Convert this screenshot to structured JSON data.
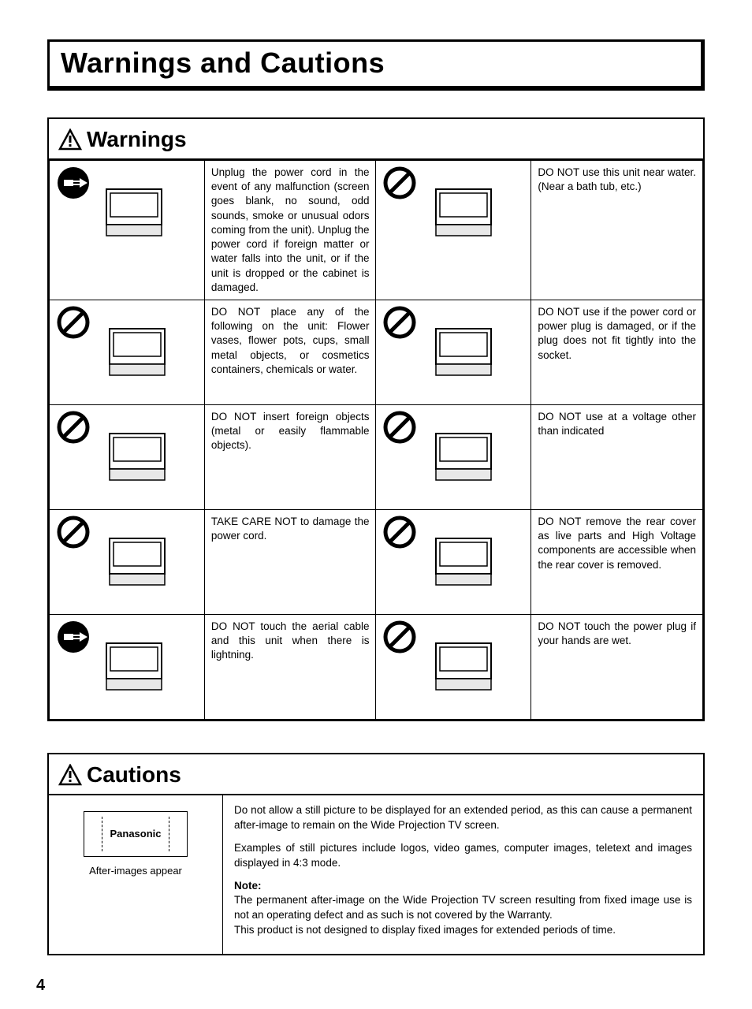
{
  "page_title": "Warnings and Cautions",
  "page_number": "4",
  "colors": {
    "text": "#000000",
    "background": "#ffffff",
    "border": "#000000"
  },
  "fonts": {
    "title_size_pt": 36,
    "section_head_size_pt": 28,
    "body_size_pt": 13.5,
    "family": "Arial"
  },
  "warnings": {
    "heading": "Warnings",
    "rows": [
      {
        "left_icon": "plug",
        "left_text": "Unplug the power cord in the event of any malfunction (screen goes blank, no sound, odd sounds, smoke or unusual odors coming from the unit). Unplug the power cord if foreign matter or water falls into the unit, or if the unit is dropped or the cabinet is damaged.",
        "right_icon": "prohibit",
        "right_text": "DO NOT use this unit near water. (Near a bath tub, etc.)"
      },
      {
        "left_icon": "prohibit",
        "left_text": "DO NOT place any of the following on the unit: Flower vases, flower pots, cups, small metal objects, or cosmetics containers, chemicals or water.",
        "right_icon": "prohibit",
        "right_text": "DO NOT use if the power cord or power plug is damaged, or if the plug does not fit tightly into the socket."
      },
      {
        "left_icon": "prohibit",
        "left_text": "DO NOT insert foreign objects (metal or easily flammable objects).",
        "right_icon": "prohibit",
        "right_text": "DO NOT use at a voltage other than indicated"
      },
      {
        "left_icon": "prohibit",
        "left_text": "TAKE CARE NOT to damage the power cord.",
        "right_icon": "prohibit",
        "right_text": "DO NOT remove the rear cover as live parts and High Voltage components are accessible when the rear cover is removed."
      },
      {
        "left_icon": "plug",
        "left_text": "DO NOT touch the aerial cable and this unit when there is lightning.",
        "right_icon": "prohibit",
        "right_text": "DO NOT touch the power plug if your hands are wet."
      }
    ]
  },
  "cautions": {
    "heading": "Cautions",
    "image_label": "After-images appear",
    "brand_label": "Panasonic",
    "body1": "Do not allow a still picture to be displayed for an extended period, as this can cause a permanent after-image to remain on the Wide Projection TV screen.",
    "body2": "Examples of still pictures include logos, video games, computer images, teletext and images displayed in 4:3 mode.",
    "note_label": "Note:",
    "note1": "The permanent after-image on the Wide Projection TV screen resulting from fixed image use is not an operating defect and as such is not covered by the Warranty.",
    "note2": "This product is not designed to display fixed images for extended periods of time."
  }
}
